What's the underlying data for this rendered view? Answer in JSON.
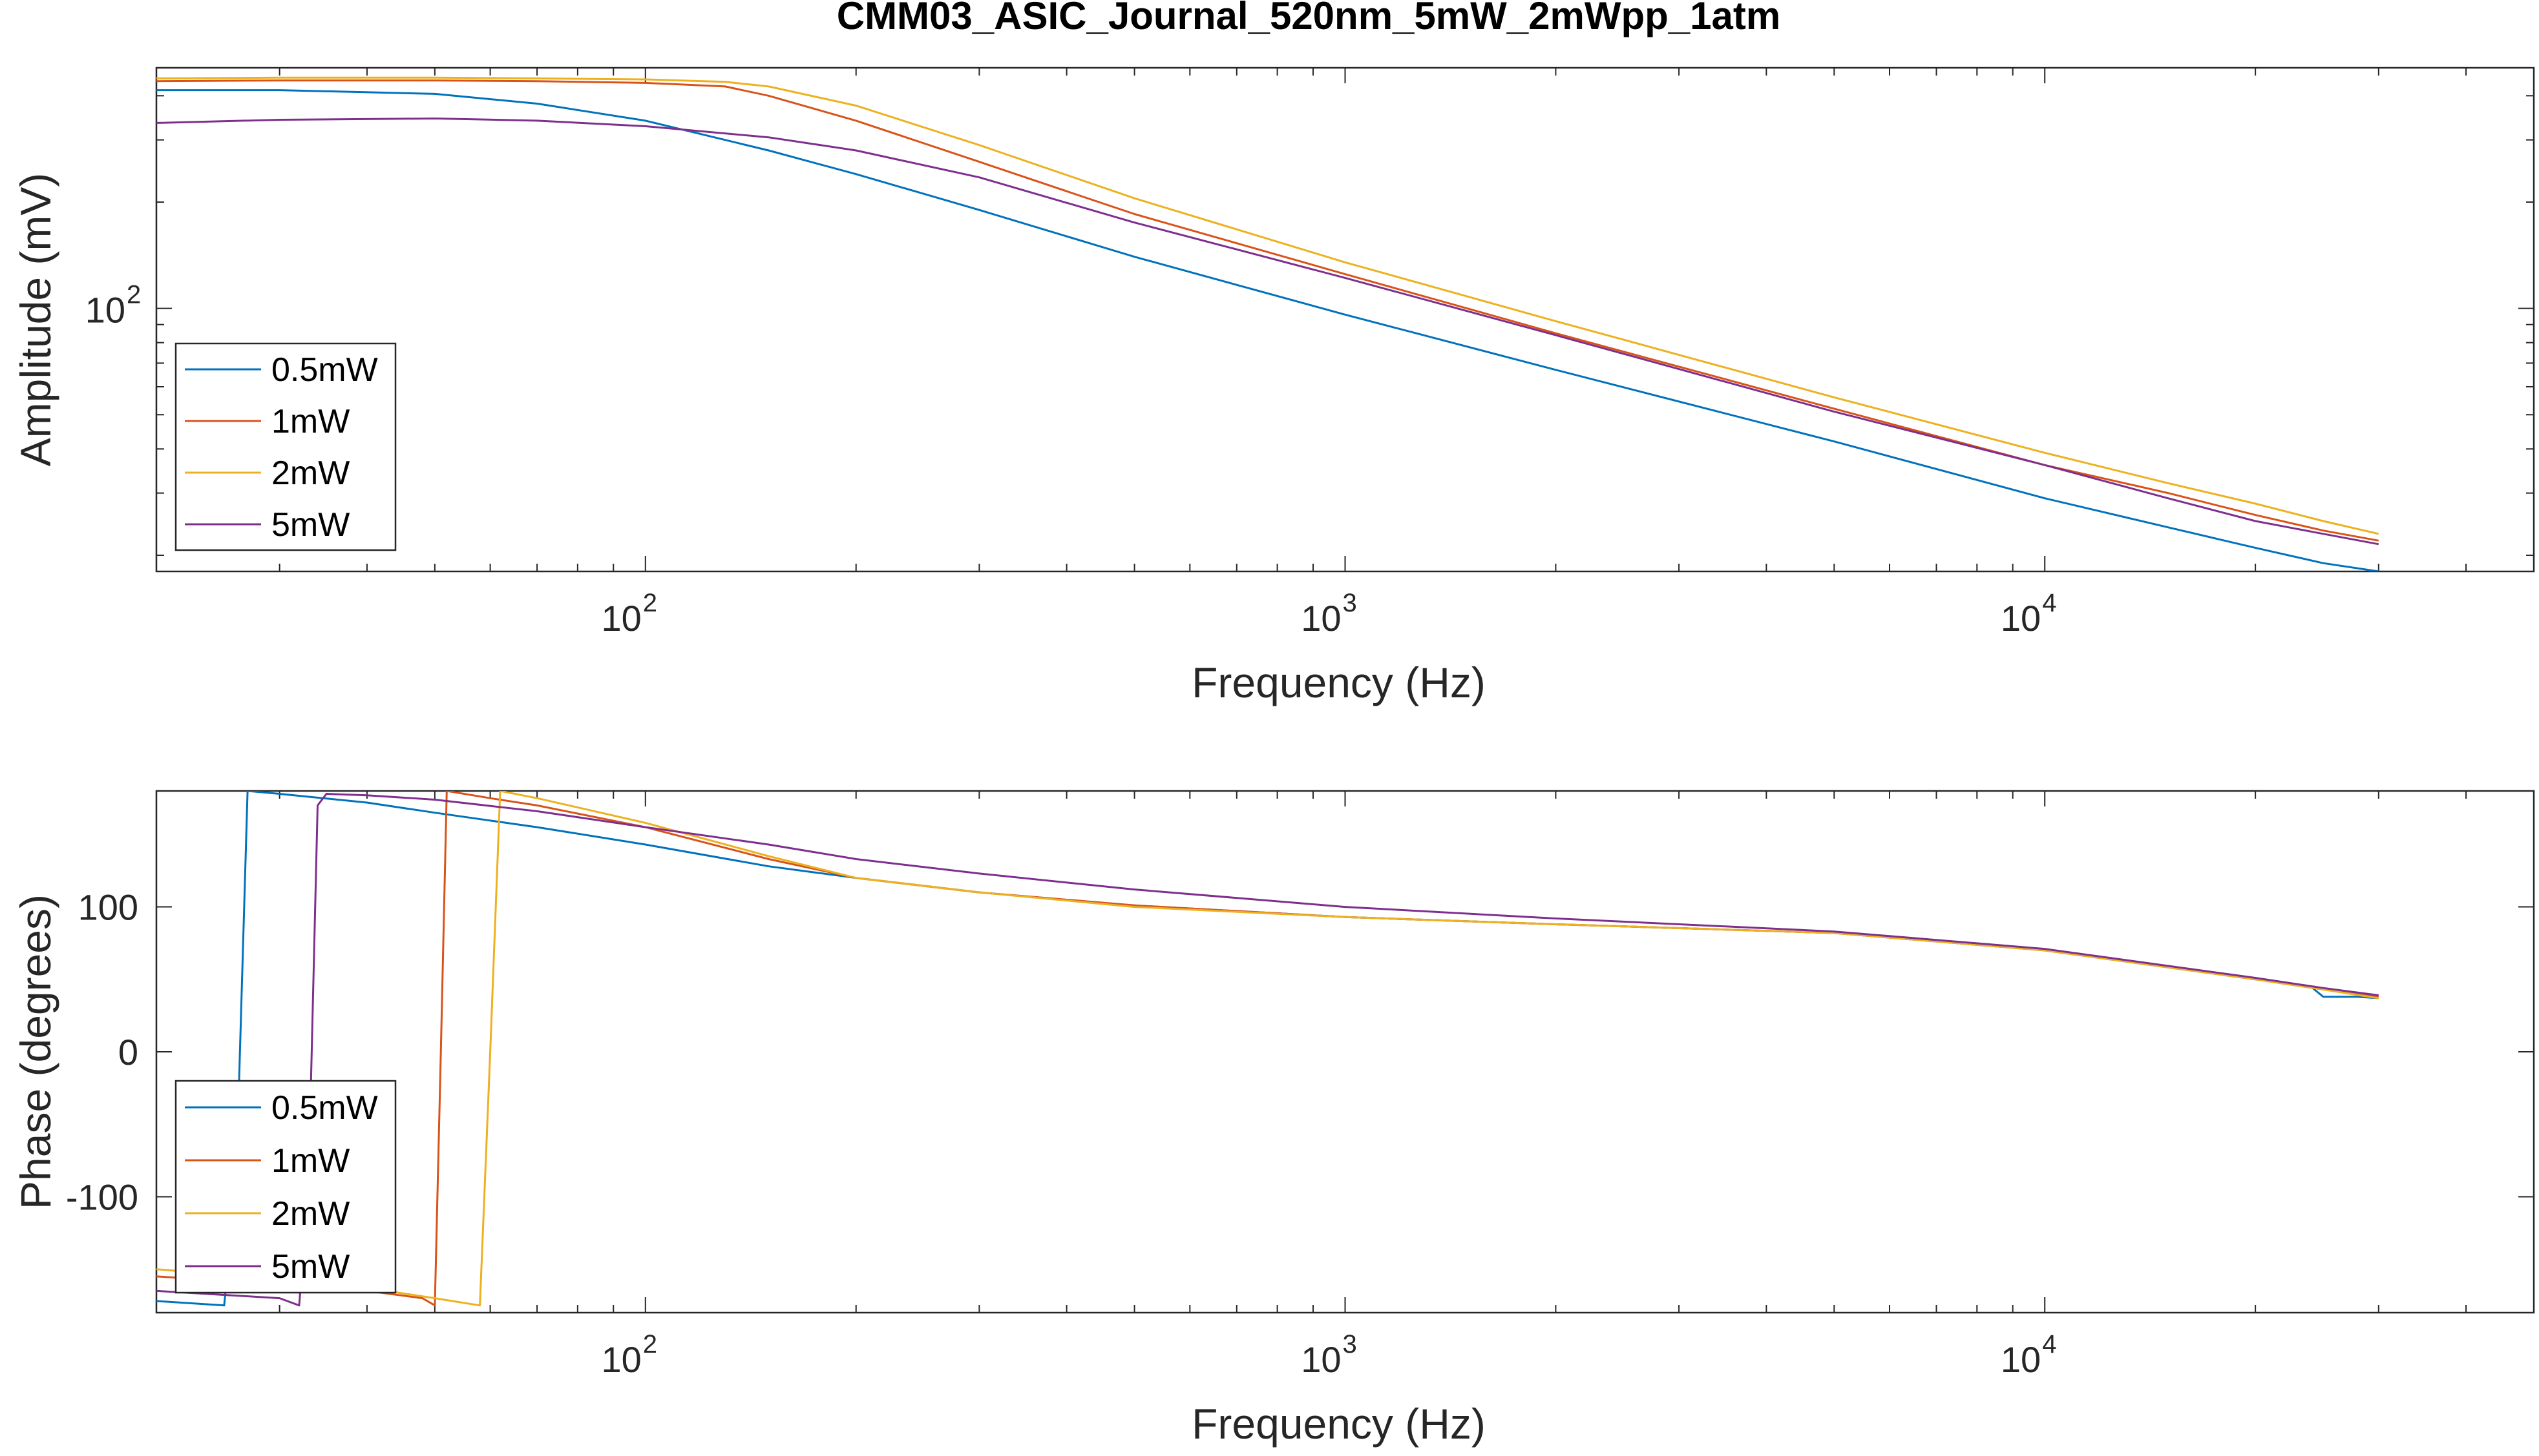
{
  "figure": {
    "title": "CMM03_ASIC_Journal_520nm_5mW_2mWpp_1atm"
  },
  "chart_data": [
    {
      "type": "line",
      "xscale": "log",
      "yscale": "log",
      "xlabel": "Frequency (Hz)",
      "ylabel": "Amplitude (mV)",
      "xlim": [
        20,
        50000
      ],
      "ylim": [
        18,
        480
      ],
      "xticks": [
        100,
        1000,
        10000
      ],
      "xtick_labels": [
        {
          "base": "10",
          "exp": "2"
        },
        {
          "base": "10",
          "exp": "3"
        },
        {
          "base": "10",
          "exp": "4"
        }
      ],
      "yticks": [
        100
      ],
      "ytick_labels": [
        {
          "base": "10",
          "exp": "2"
        }
      ],
      "legend": "bottom-left",
      "grid": false,
      "series": [
        {
          "name": "0.5mW",
          "color": "#0072BD",
          "x": [
            20,
            30,
            50,
            70,
            100,
            150,
            200,
            300,
            500,
            1000,
            2000,
            5000,
            10000,
            15000,
            19000,
            20000,
            25000,
            30000
          ],
          "y": [
            415,
            415,
            405,
            380,
            340,
            280,
            240,
            190,
            140,
            96,
            67,
            42,
            29,
            24,
            21.5,
            21,
            19,
            18
          ]
        },
        {
          "name": "1mW",
          "color": "#D95319",
          "x": [
            20,
            30,
            50,
            70,
            100,
            130,
            150,
            200,
            300,
            500,
            1000,
            2000,
            5000,
            10000,
            15000,
            20000,
            25000,
            30000
          ],
          "y": [
            440,
            442,
            442,
            440,
            435,
            425,
            400,
            340,
            260,
            185,
            125,
            85,
            52,
            36,
            30,
            26,
            23.5,
            22
          ]
        },
        {
          "name": "2mW",
          "color": "#EDB120",
          "x": [
            20,
            30,
            50,
            70,
            100,
            130,
            150,
            200,
            300,
            500,
            1000,
            2000,
            5000,
            10000,
            15000,
            20000,
            25000,
            30000
          ],
          "y": [
            448,
            450,
            450,
            448,
            445,
            438,
            425,
            375,
            290,
            205,
            135,
            92,
            56,
            39,
            32,
            28,
            25,
            23
          ]
        },
        {
          "name": "5mW",
          "color": "#7E2F8E",
          "x": [
            20,
            30,
            50,
            70,
            100,
            150,
            200,
            300,
            500,
            1000,
            2000,
            5000,
            10000,
            15000,
            20000,
            25000,
            30000
          ],
          "y": [
            335,
            342,
            345,
            340,
            328,
            305,
            280,
            235,
            175,
            122,
            84,
            51,
            36,
            29,
            25,
            23,
            21.5
          ]
        }
      ]
    },
    {
      "type": "line",
      "xscale": "log",
      "yscale": "linear",
      "xlabel": "Frequency (Hz)",
      "ylabel": "Phase (degrees)",
      "xlim": [
        20,
        50000
      ],
      "ylim": [
        -180,
        180
      ],
      "xticks": [
        100,
        1000,
        10000
      ],
      "xtick_labels": [
        {
          "base": "10",
          "exp": "2"
        },
        {
          "base": "10",
          "exp": "3"
        },
        {
          "base": "10",
          "exp": "4"
        }
      ],
      "yticks": [
        -100,
        0,
        100
      ],
      "ytick_labels": [
        "-100",
        "0",
        "100"
      ],
      "legend": "bottom-left",
      "grid": false,
      "series": [
        {
          "name": "0.5mW",
          "color": "#0072BD",
          "x": [
            20,
            25,
            26,
            27,
            30,
            40,
            50,
            70,
            100,
            150,
            200,
            300,
            500,
            1000,
            2000,
            5000,
            10000,
            20000,
            24000,
            25000,
            28000,
            30000
          ],
          "y": [
            -172,
            -175,
            -90,
            180,
            178,
            172,
            165,
            155,
            143,
            128,
            120,
            110,
            101,
            93,
            88,
            82,
            70,
            50,
            45,
            38,
            38,
            37
          ]
        },
        {
          "name": "1mW",
          "color": "#D95319",
          "x": [
            20,
            30,
            40,
            48,
            50,
            51,
            52,
            60,
            70,
            100,
            150,
            200,
            300,
            500,
            1000,
            2000,
            5000,
            10000,
            20000,
            25000,
            30000
          ],
          "y": [
            -155,
            -160,
            -165,
            -170,
            -175,
            0,
            180,
            175,
            170,
            155,
            133,
            120,
            110,
            101,
            93,
            88,
            82,
            70,
            50,
            43,
            38
          ]
        },
        {
          "name": "2mW",
          "color": "#EDB120",
          "x": [
            20,
            30,
            40,
            50,
            58,
            60,
            62,
            70,
            100,
            150,
            200,
            300,
            500,
            1000,
            2000,
            5000,
            10000,
            20000,
            25000,
            30000
          ],
          "y": [
            -150,
            -157,
            -163,
            -170,
            -175,
            0,
            180,
            175,
            158,
            135,
            120,
            110,
            100,
            93,
            88,
            82,
            70,
            50,
            43,
            37
          ]
        },
        {
          "name": "5mW",
          "color": "#7E2F8E",
          "x": [
            20,
            30,
            32,
            33,
            34,
            35,
            40,
            50,
            70,
            100,
            150,
            200,
            300,
            500,
            1000,
            2000,
            5000,
            10000,
            20000,
            25000,
            30000
          ],
          "y": [
            -165,
            -170,
            -175,
            -90,
            170,
            178,
            177,
            174,
            166,
            155,
            143,
            133,
            123,
            112,
            100,
            92,
            83,
            71,
            51,
            44,
            39
          ]
        }
      ]
    }
  ]
}
